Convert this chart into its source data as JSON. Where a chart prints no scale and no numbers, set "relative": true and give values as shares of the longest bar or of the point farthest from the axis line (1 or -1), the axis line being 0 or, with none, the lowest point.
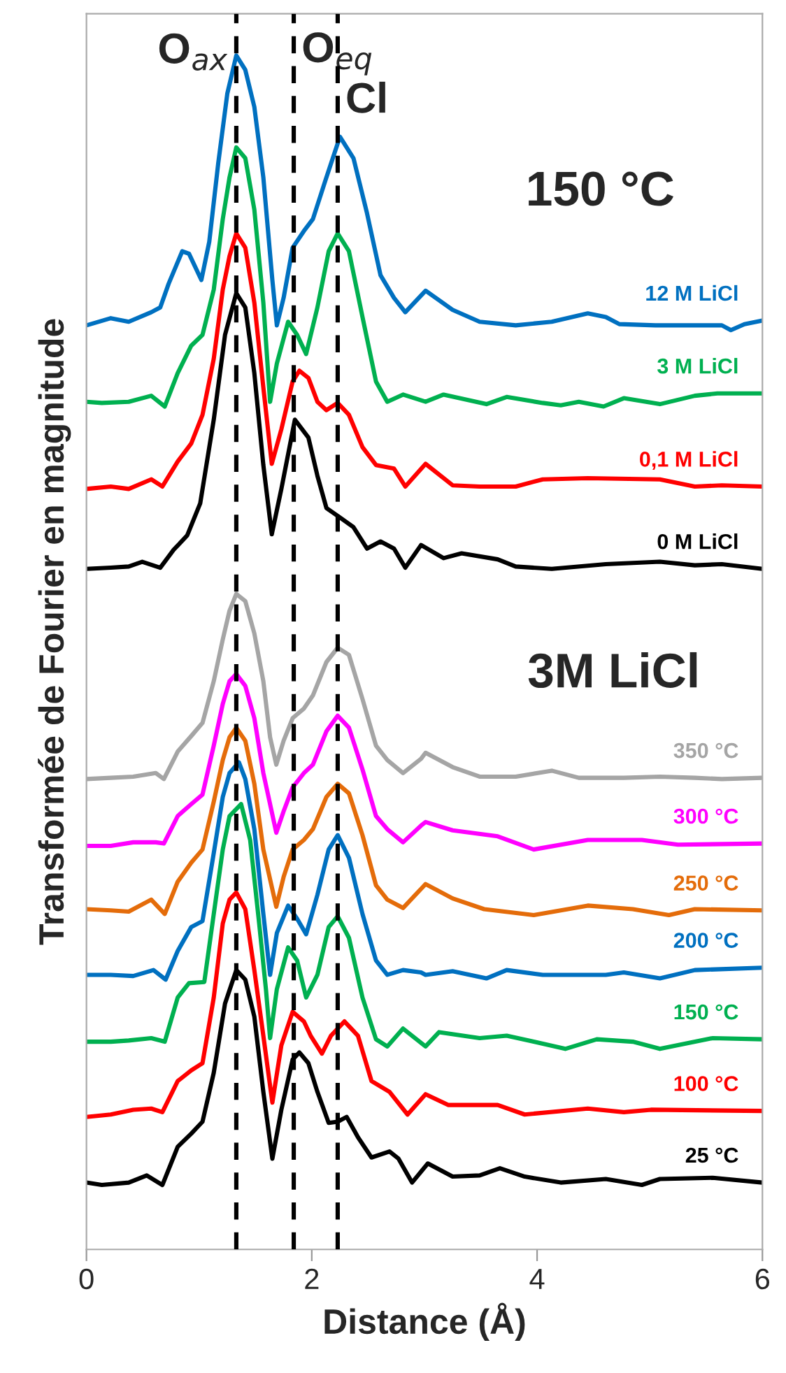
{
  "chart_data": {
    "type": "line",
    "relative": true,
    "xlabel": "Distance (Å)",
    "ylabel": "Transformée de Fourier en magnitude",
    "xlim": [
      0,
      6
    ],
    "xticks": [
      0,
      2,
      4,
      6
    ],
    "tick_labels": "x",
    "grid": false,
    "legend": false,
    "line_style": "solid",
    "marker": "none",
    "annotations": [
      "150 °C",
      "3M LiCl"
    ],
    "ref_lines": [
      {
        "axis": "x",
        "value": 1.33,
        "label": "O$_{ax}$",
        "color": "#000000",
        "line_style": "dashed"
      },
      {
        "axis": "x",
        "value": 1.84,
        "label": "O$_{eq}$",
        "color": "#000000",
        "line_style": "dashed"
      },
      {
        "axis": "x",
        "value": 2.23,
        "label": "Cl",
        "color": "#000000",
        "line_style": "dashed"
      }
    ],
    "series": [
      {
        "name": "12 M LiCl",
        "color": "#0070c0",
        "x": [
          0,
          0.216,
          0.375,
          0.575,
          0.655,
          0.73,
          0.85,
          0.91,
          1.02,
          1.09,
          1.17,
          1.25,
          1.33,
          1.41,
          1.49,
          1.57,
          1.65,
          1.69,
          1.75,
          1.83,
          1.93,
          2.01,
          2.13,
          2.25,
          2.37,
          2.49,
          2.61,
          2.73,
          2.83,
          3.01,
          3.25,
          3.49,
          3.81,
          4.13,
          4.45,
          4.61,
          4.73,
          5.05,
          5.64,
          5.72,
          5.84,
          6.0
        ],
        "values": [
          0.774,
          0.78,
          0.777,
          0.785,
          0.789,
          0.809,
          0.836,
          0.834,
          0.812,
          0.844,
          0.91,
          0.968,
          1.0,
          0.988,
          0.957,
          0.898,
          0.812,
          0.774,
          0.797,
          0.839,
          0.853,
          0.863,
          0.898,
          0.932,
          0.914,
          0.868,
          0.816,
          0.797,
          0.785,
          0.803,
          0.787,
          0.777,
          0.774,
          0.777,
          0.784,
          0.781,
          0.775,
          0.774,
          0.774,
          0.77,
          0.775,
          0.778
        ]
      },
      {
        "name": "3 M LiCl",
        "color": "#00b050",
        "x": [
          0,
          0.136,
          0.375,
          0.575,
          0.695,
          0.81,
          0.93,
          1.03,
          1.13,
          1.21,
          1.27,
          1.33,
          1.41,
          1.49,
          1.57,
          1.63,
          1.69,
          1.79,
          1.87,
          1.95,
          2.05,
          2.15,
          2.23,
          2.33,
          2.45,
          2.57,
          2.67,
          2.81,
          3.01,
          3.17,
          3.55,
          3.73,
          4.05,
          4.21,
          4.37,
          4.59,
          4.77,
          5.09,
          5.4,
          5.6,
          6.0
        ],
        "values": [
          0.71,
          0.709,
          0.71,
          0.715,
          0.706,
          0.734,
          0.757,
          0.766,
          0.804,
          0.863,
          0.898,
          0.923,
          0.914,
          0.871,
          0.793,
          0.71,
          0.742,
          0.777,
          0.766,
          0.75,
          0.789,
          0.836,
          0.851,
          0.836,
          0.781,
          0.727,
          0.71,
          0.716,
          0.71,
          0.716,
          0.708,
          0.714,
          0.709,
          0.707,
          0.71,
          0.706,
          0.713,
          0.708,
          0.715,
          0.717,
          0.717
        ]
      },
      {
        "name": "0,1 M LiCl",
        "color": "#ff0000",
        "x": [
          0,
          0.216,
          0.375,
          0.575,
          0.674,
          0.81,
          0.93,
          1.03,
          1.13,
          1.21,
          1.27,
          1.33,
          1.41,
          1.49,
          1.57,
          1.645,
          1.73,
          1.83,
          1.89,
          1.97,
          2.05,
          2.13,
          2.23,
          2.33,
          2.45,
          2.57,
          2.73,
          2.83,
          3.01,
          3.25,
          3.49,
          3.81,
          4.05,
          4.45,
          5.09,
          5.4,
          5.64,
          6.0
        ],
        "values": [
          0.637,
          0.639,
          0.637,
          0.645,
          0.639,
          0.66,
          0.675,
          0.699,
          0.746,
          0.804,
          0.832,
          0.851,
          0.839,
          0.793,
          0.722,
          0.658,
          0.687,
          0.727,
          0.736,
          0.73,
          0.71,
          0.703,
          0.709,
          0.699,
          0.672,
          0.657,
          0.654,
          0.639,
          0.658,
          0.64,
          0.639,
          0.639,
          0.645,
          0.646,
          0.645,
          0.639,
          0.64,
          0.639
        ]
      },
      {
        "name": "0 M LiCl",
        "color": "#000000",
        "x": [
          0,
          0.216,
          0.375,
          0.495,
          0.655,
          0.774,
          0.894,
          1.01,
          1.13,
          1.23,
          1.33,
          1.41,
          1.49,
          1.57,
          1.645,
          1.73,
          1.85,
          1.97,
          2.05,
          2.13,
          2.25,
          2.37,
          2.49,
          2.61,
          2.73,
          2.83,
          2.97,
          3.17,
          3.33,
          3.65,
          3.81,
          4.13,
          4.61,
          5.09,
          5.4,
          5.64,
          6.0
        ],
        "values": [
          0.57,
          0.571,
          0.572,
          0.576,
          0.571,
          0.586,
          0.598,
          0.625,
          0.695,
          0.766,
          0.801,
          0.789,
          0.734,
          0.657,
          0.599,
          0.637,
          0.695,
          0.68,
          0.648,
          0.621,
          0.613,
          0.605,
          0.587,
          0.593,
          0.587,
          0.571,
          0.59,
          0.579,
          0.583,
          0.578,
          0.572,
          0.57,
          0.574,
          0.576,
          0.573,
          0.574,
          0.57
        ]
      },
      {
        "name": "350 °C",
        "color": "#a5a5a5",
        "x": [
          0,
          0.216,
          0.415,
          0.615,
          0.687,
          0.81,
          0.93,
          1.03,
          1.13,
          1.21,
          1.27,
          1.33,
          1.41,
          1.49,
          1.57,
          1.63,
          1.685,
          1.75,
          1.83,
          1.93,
          2.01,
          2.13,
          2.23,
          2.33,
          2.45,
          2.57,
          2.67,
          2.81,
          2.97,
          3.01,
          3.25,
          3.49,
          3.81,
          4.13,
          4.37,
          4.77,
          5.09,
          5.4,
          5.64,
          6.0
        ],
        "values": [
          0.394,
          0.395,
          0.396,
          0.399,
          0.394,
          0.417,
          0.43,
          0.441,
          0.476,
          0.511,
          0.535,
          0.549,
          0.543,
          0.516,
          0.476,
          0.429,
          0.406,
          0.426,
          0.445,
          0.453,
          0.464,
          0.492,
          0.504,
          0.498,
          0.461,
          0.422,
          0.41,
          0.399,
          0.411,
          0.416,
          0.404,
          0.396,
          0.396,
          0.401,
          0.395,
          0.395,
          0.396,
          0.395,
          0.394,
          0.395
        ]
      },
      {
        "name": "300 °C",
        "color": "#ff00ff",
        "x": [
          0,
          0.216,
          0.415,
          0.615,
          0.687,
          0.81,
          0.93,
          1.03,
          1.13,
          1.21,
          1.27,
          1.33,
          1.41,
          1.49,
          1.57,
          1.685,
          1.75,
          1.83,
          1.93,
          2.01,
          2.13,
          2.23,
          2.33,
          2.45,
          2.57,
          2.67,
          2.81,
          2.97,
          3.01,
          3.25,
          3.65,
          3.97,
          4.45,
          4.93,
          5.25,
          6.0
        ],
        "values": [
          0.338,
          0.338,
          0.341,
          0.341,
          0.34,
          0.363,
          0.373,
          0.381,
          0.422,
          0.457,
          0.476,
          0.482,
          0.472,
          0.445,
          0.399,
          0.349,
          0.367,
          0.387,
          0.399,
          0.406,
          0.434,
          0.447,
          0.437,
          0.402,
          0.363,
          0.352,
          0.341,
          0.355,
          0.358,
          0.351,
          0.346,
          0.335,
          0.343,
          0.343,
          0.339,
          0.34
        ]
      },
      {
        "name": "250 °C",
        "color": "#e46c0a",
        "x": [
          0,
          0.216,
          0.375,
          0.575,
          0.695,
          0.81,
          0.93,
          1.03,
          1.13,
          1.21,
          1.27,
          1.33,
          1.41,
          1.49,
          1.57,
          1.685,
          1.75,
          1.83,
          1.93,
          2.01,
          2.13,
          2.23,
          2.33,
          2.45,
          2.57,
          2.67,
          2.81,
          2.97,
          3.01,
          3.25,
          3.53,
          3.97,
          4.45,
          4.85,
          5.17,
          5.4,
          6.0
        ],
        "values": [
          0.285,
          0.284,
          0.283,
          0.293,
          0.281,
          0.308,
          0.324,
          0.335,
          0.375,
          0.41,
          0.429,
          0.437,
          0.426,
          0.39,
          0.335,
          0.287,
          0.312,
          0.335,
          0.343,
          0.352,
          0.379,
          0.39,
          0.382,
          0.347,
          0.305,
          0.293,
          0.286,
          0.302,
          0.306,
          0.294,
          0.285,
          0.28,
          0.288,
          0.285,
          0.28,
          0.285,
          0.284
        ]
      },
      {
        "name": "200 °C",
        "color": "#0070c0",
        "x": [
          0,
          0.216,
          0.415,
          0.595,
          0.703,
          0.81,
          0.93,
          1.03,
          1.13,
          1.21,
          1.27,
          1.353,
          1.41,
          1.49,
          1.57,
          1.63,
          1.69,
          1.79,
          1.87,
          1.95,
          2.05,
          2.15,
          2.23,
          2.33,
          2.45,
          2.57,
          2.67,
          2.81,
          2.97,
          3.01,
          3.25,
          3.55,
          3.73,
          4.05,
          4.61,
          4.77,
          5.09,
          5.4,
          6.0
        ],
        "values": [
          0.23,
          0.23,
          0.229,
          0.234,
          0.226,
          0.25,
          0.27,
          0.275,
          0.332,
          0.379,
          0.399,
          0.408,
          0.394,
          0.352,
          0.281,
          0.23,
          0.265,
          0.288,
          0.277,
          0.264,
          0.297,
          0.335,
          0.347,
          0.328,
          0.281,
          0.242,
          0.23,
          0.234,
          0.232,
          0.23,
          0.233,
          0.227,
          0.234,
          0.23,
          0.23,
          0.232,
          0.227,
          0.234,
          0.236
        ]
      },
      {
        "name": "150 °C",
        "color": "#00b050",
        "x": [
          0,
          0.216,
          0.375,
          0.575,
          0.695,
          0.81,
          0.91,
          1.046,
          1.13,
          1.21,
          1.27,
          1.373,
          1.453,
          1.533,
          1.593,
          1.63,
          1.69,
          1.79,
          1.87,
          1.95,
          2.05,
          2.15,
          2.23,
          2.33,
          2.45,
          2.57,
          2.67,
          2.81,
          3.01,
          3.13,
          3.49,
          3.73,
          3.97,
          4.25,
          4.53,
          4.85,
          5.09,
          5.56,
          6.0
        ],
        "values": [
          0.174,
          0.174,
          0.175,
          0.177,
          0.174,
          0.211,
          0.223,
          0.224,
          0.281,
          0.335,
          0.363,
          0.373,
          0.343,
          0.273,
          0.218,
          0.177,
          0.218,
          0.253,
          0.242,
          0.211,
          0.23,
          0.27,
          0.279,
          0.261,
          0.211,
          0.176,
          0.17,
          0.185,
          0.17,
          0.182,
          0.177,
          0.179,
          0.174,
          0.168,
          0.176,
          0.174,
          0.168,
          0.177,
          0.176
        ]
      },
      {
        "name": "100 °C",
        "color": "#ff0000",
        "x": [
          0,
          0.216,
          0.415,
          0.575,
          0.674,
          0.81,
          0.93,
          1.03,
          1.13,
          1.21,
          1.27,
          1.33,
          1.41,
          1.49,
          1.57,
          1.65,
          1.73,
          1.83,
          1.93,
          1.99,
          2.09,
          2.17,
          2.29,
          2.41,
          2.53,
          2.69,
          2.85,
          3.01,
          3.21,
          3.65,
          3.89,
          4.45,
          4.77,
          5.01,
          6.0
        ],
        "values": [
          0.111,
          0.113,
          0.117,
          0.118,
          0.115,
          0.141,
          0.15,
          0.156,
          0.211,
          0.273,
          0.293,
          0.299,
          0.285,
          0.234,
          0.179,
          0.123,
          0.171,
          0.199,
          0.191,
          0.179,
          0.164,
          0.179,
          0.191,
          0.179,
          0.141,
          0.132,
          0.113,
          0.13,
          0.121,
          0.121,
          0.113,
          0.118,
          0.115,
          0.117,
          0.116
        ]
      },
      {
        "name": "25 °C",
        "color": "#000000",
        "x": [
          0,
          0.136,
          0.375,
          0.535,
          0.674,
          0.81,
          0.93,
          1.03,
          1.13,
          1.23,
          1.33,
          1.41,
          1.49,
          1.57,
          1.65,
          1.73,
          1.83,
          1.89,
          1.97,
          2.05,
          2.15,
          2.23,
          2.31,
          2.41,
          2.53,
          2.69,
          2.77,
          2.89,
          3.03,
          3.25,
          3.49,
          3.67,
          3.89,
          4.21,
          4.61,
          4.93,
          5.09,
          5.56,
          6.0
        ],
        "values": [
          0.056,
          0.054,
          0.056,
          0.062,
          0.054,
          0.086,
          0.097,
          0.107,
          0.148,
          0.206,
          0.234,
          0.226,
          0.195,
          0.132,
          0.076,
          0.117,
          0.159,
          0.165,
          0.156,
          0.132,
          0.106,
          0.107,
          0.111,
          0.094,
          0.077,
          0.082,
          0.076,
          0.056,
          0.072,
          0.061,
          0.062,
          0.068,
          0.061,
          0.056,
          0.059,
          0.054,
          0.059,
          0.06,
          0.056
        ]
      }
    ]
  }
}
